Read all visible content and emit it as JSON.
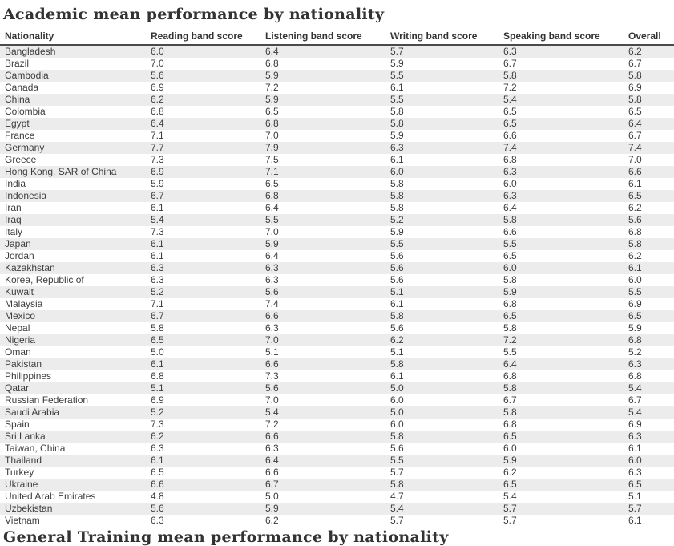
{
  "page": {
    "title": "Academic mean performance by nationality",
    "next_section_title": "General Training mean performance by nationality"
  },
  "table": {
    "columns": [
      "Nationality",
      "Reading band score",
      "Listening band score",
      "Writing band score",
      "Speaking band score",
      "Overall"
    ],
    "rows": [
      [
        "Bangladesh",
        "6.0",
        "6.4",
        "5.7",
        "6.3",
        "6.2"
      ],
      [
        "Brazil",
        "7.0",
        "6.8",
        "5.9",
        "6.7",
        "6.7"
      ],
      [
        "Cambodia",
        "5.6",
        "5.9",
        "5.5",
        "5.8",
        "5.8"
      ],
      [
        "Canada",
        "6.9",
        "7.2",
        "6.1",
        "7.2",
        "6.9"
      ],
      [
        "China",
        "6.2",
        "5.9",
        "5.5",
        "5.4",
        "5.8"
      ],
      [
        "Colombia",
        "6.8",
        "6.5",
        "5.8",
        "6.5",
        "6.5"
      ],
      [
        "Egypt",
        "6.4",
        "6.8",
        "5.8",
        "6.5",
        "6.4"
      ],
      [
        "France",
        "7.1",
        "7.0",
        "5.9",
        "6.6",
        "6.7"
      ],
      [
        "Germany",
        "7.7",
        "7.9",
        "6.3",
        "7.4",
        "7.4"
      ],
      [
        "Greece",
        "7.3",
        "7.5",
        "6.1",
        "6.8",
        "7.0"
      ],
      [
        "Hong Kong. SAR of China",
        "6.9",
        "7.1",
        "6.0",
        "6.3",
        "6.6"
      ],
      [
        "India",
        "5.9",
        "6.5",
        "5.8",
        "6.0",
        "6.1"
      ],
      [
        "Indonesia",
        "6.7",
        "6.8",
        "5.8",
        "6.3",
        "6.5"
      ],
      [
        "Iran",
        "6.1",
        "6.4",
        "5.8",
        "6.4",
        "6.2"
      ],
      [
        "Iraq",
        "5.4",
        "5.5",
        "5.2",
        "5.8",
        "5.6"
      ],
      [
        "Italy",
        "7.3",
        "7.0",
        "5.9",
        "6.6",
        "6.8"
      ],
      [
        "Japan",
        "6.1",
        "5.9",
        "5.5",
        "5.5",
        "5.8"
      ],
      [
        "Jordan",
        "6.1",
        "6.4",
        "5.6",
        "6.5",
        "6.2"
      ],
      [
        "Kazakhstan",
        "6.3",
        "6.3",
        "5.6",
        "6.0",
        "6.1"
      ],
      [
        "Korea, Republic of",
        "6.3",
        "6.3",
        "5.6",
        "5.8",
        "6.0"
      ],
      [
        "Kuwait",
        "5.2",
        "5.6",
        "5.1",
        "5.9",
        "5.5"
      ],
      [
        "Malaysia",
        "7.1",
        "7.4",
        "6.1",
        "6.8",
        "6.9"
      ],
      [
        "Mexico",
        "6.7",
        "6.6",
        "5.8",
        "6.5",
        "6.5"
      ],
      [
        "Nepal",
        "5.8",
        "6.3",
        "5.6",
        "5.8",
        "5.9"
      ],
      [
        "Nigeria",
        "6.5",
        "7.0",
        "6.2",
        "7.2",
        "6.8"
      ],
      [
        "Oman",
        "5.0",
        "5.1",
        "5.1",
        "5.5",
        "5.2"
      ],
      [
        "Pakistan",
        "6.1",
        "6.6",
        "5.8",
        "6.4",
        "6.3"
      ],
      [
        "Philippines",
        "6.8",
        "7.3",
        "6.1",
        "6.8",
        "6.8"
      ],
      [
        "Qatar",
        "5.1",
        "5.6",
        "5.0",
        "5.8",
        "5.4"
      ],
      [
        "Russian Federation",
        "6.9",
        "7.0",
        "6.0",
        "6.7",
        "6.7"
      ],
      [
        "Saudi Arabia",
        "5.2",
        "5.4",
        "5.0",
        "5.8",
        "5.4"
      ],
      [
        "Spain",
        "7.3",
        "7.2",
        "6.0",
        "6.8",
        "6.9"
      ],
      [
        "Sri Lanka",
        "6.2",
        "6.6",
        "5.8",
        "6.5",
        "6.3"
      ],
      [
        "Taiwan, China",
        "6.3",
        "6.3",
        "5.6",
        "6.0",
        "6.1"
      ],
      [
        "Thailand",
        "6.1",
        "6.4",
        "5.5",
        "5.9",
        "6.0"
      ],
      [
        "Turkey",
        "6.5",
        "6.6",
        "5.7",
        "6.2",
        "6.3"
      ],
      [
        "Ukraine",
        "6.6",
        "6.7",
        "5.8",
        "6.5",
        "6.5"
      ],
      [
        "United Arab Emirates",
        "4.8",
        "5.0",
        "4.7",
        "5.4",
        "5.1"
      ],
      [
        "Uzbekistan",
        "5.6",
        "5.9",
        "5.4",
        "5.7",
        "5.7"
      ],
      [
        "Vietnam",
        "6.3",
        "6.2",
        "5.7",
        "5.7",
        "6.1"
      ]
    ]
  },
  "chart_data": {
    "type": "table",
    "title": "Academic mean performance by nationality",
    "columns": [
      "Nationality",
      "Reading band score",
      "Listening band score",
      "Writing band score",
      "Speaking band score",
      "Overall"
    ],
    "categories": [
      "Bangladesh",
      "Brazil",
      "Cambodia",
      "Canada",
      "China",
      "Colombia",
      "Egypt",
      "France",
      "Germany",
      "Greece",
      "Hong Kong. SAR of China",
      "India",
      "Indonesia",
      "Iran",
      "Iraq",
      "Italy",
      "Japan",
      "Jordan",
      "Kazakhstan",
      "Korea, Republic of",
      "Kuwait",
      "Malaysia",
      "Mexico",
      "Nepal",
      "Nigeria",
      "Oman",
      "Pakistan",
      "Philippines",
      "Qatar",
      "Russian Federation",
      "Saudi Arabia",
      "Spain",
      "Sri Lanka",
      "Taiwan, China",
      "Thailand",
      "Turkey",
      "Ukraine",
      "United Arab Emirates",
      "Uzbekistan",
      "Vietnam"
    ],
    "series": [
      {
        "name": "Reading band score",
        "values": [
          6.0,
          7.0,
          5.6,
          6.9,
          6.2,
          6.8,
          6.4,
          7.1,
          7.7,
          7.3,
          6.9,
          5.9,
          6.7,
          6.1,
          5.4,
          7.3,
          6.1,
          6.1,
          6.3,
          6.3,
          5.2,
          7.1,
          6.7,
          5.8,
          6.5,
          5.0,
          6.1,
          6.8,
          5.1,
          6.9,
          5.2,
          7.3,
          6.2,
          6.3,
          6.1,
          6.5,
          6.6,
          4.8,
          5.6,
          6.3
        ]
      },
      {
        "name": "Listening band score",
        "values": [
          6.4,
          6.8,
          5.9,
          7.2,
          5.9,
          6.5,
          6.8,
          7.0,
          7.9,
          7.5,
          7.1,
          6.5,
          6.8,
          6.4,
          5.5,
          7.0,
          5.9,
          6.4,
          6.3,
          6.3,
          5.6,
          7.4,
          6.6,
          6.3,
          7.0,
          5.1,
          6.6,
          7.3,
          5.6,
          7.0,
          5.4,
          7.2,
          6.6,
          6.3,
          6.4,
          6.6,
          6.7,
          5.0,
          5.9,
          6.2
        ]
      },
      {
        "name": "Writing band score",
        "values": [
          5.7,
          5.9,
          5.5,
          6.1,
          5.5,
          5.8,
          5.8,
          5.9,
          6.3,
          6.1,
          6.0,
          5.8,
          5.8,
          5.8,
          5.2,
          5.9,
          5.5,
          5.6,
          5.6,
          5.6,
          5.1,
          6.1,
          5.8,
          5.6,
          6.2,
          5.1,
          5.8,
          6.1,
          5.0,
          6.0,
          5.0,
          6.0,
          5.8,
          5.6,
          5.5,
          5.7,
          5.8,
          4.7,
          5.4,
          5.7
        ]
      },
      {
        "name": "Speaking band score",
        "values": [
          6.3,
          6.7,
          5.8,
          7.2,
          5.4,
          6.5,
          6.5,
          6.6,
          7.4,
          6.8,
          6.3,
          6.0,
          6.3,
          6.4,
          5.8,
          6.6,
          5.5,
          6.5,
          6.0,
          5.8,
          5.9,
          6.8,
          6.5,
          5.8,
          7.2,
          5.5,
          6.4,
          6.8,
          5.8,
          6.7,
          5.8,
          6.8,
          6.5,
          6.0,
          5.9,
          6.2,
          6.5,
          5.4,
          5.7,
          5.7
        ]
      },
      {
        "name": "Overall",
        "values": [
          6.2,
          6.7,
          5.8,
          6.9,
          5.8,
          6.5,
          6.4,
          6.7,
          7.4,
          7.0,
          6.6,
          6.1,
          6.5,
          6.2,
          5.6,
          6.8,
          5.8,
          6.2,
          6.1,
          6.0,
          5.5,
          6.9,
          6.5,
          5.9,
          6.8,
          5.2,
          6.3,
          6.8,
          5.4,
          6.7,
          5.4,
          6.9,
          6.3,
          6.1,
          6.0,
          6.3,
          6.5,
          5.1,
          5.7,
          6.1
        ]
      }
    ]
  }
}
